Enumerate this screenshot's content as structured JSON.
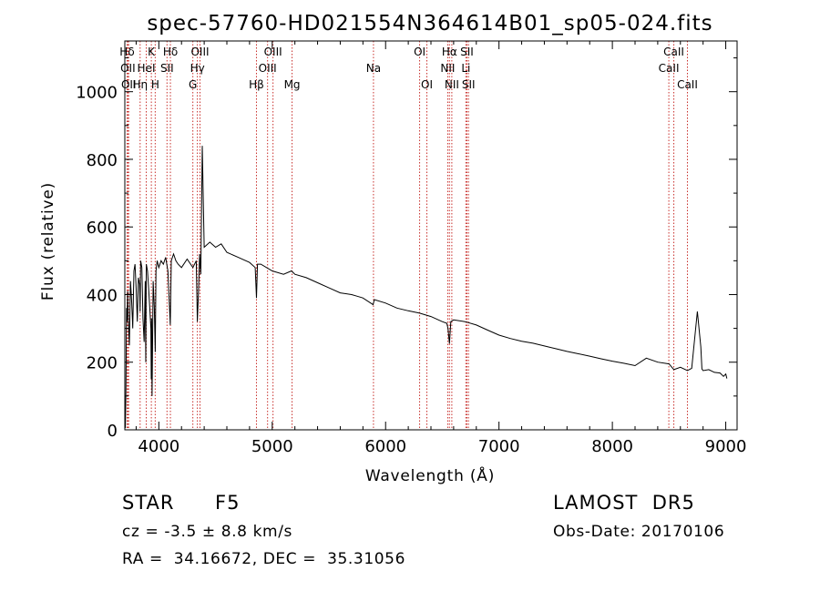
{
  "chart_data": {
    "type": "line",
    "title": "spec-57760-HD021554N364614B01_sp05-024.fits",
    "xlabel": "Wavelength (Å)",
    "ylabel": "Flux (relative)",
    "xlim": [
      3700,
      9100
    ],
    "ylim": [
      0,
      1150
    ],
    "xticks": [
      4000,
      5000,
      6000,
      7000,
      8000,
      9000
    ],
    "yticks": [
      0,
      200,
      400,
      600,
      800,
      1000
    ],
    "grid": false,
    "legend": "none",
    "line_color": "#000000",
    "marker_color": "#c8302c",
    "series": [
      {
        "x": [
          3705,
          3710,
          3715,
          3720,
          3725,
          3730,
          3740,
          3750,
          3760,
          3770,
          3780,
          3790,
          3800,
          3810,
          3820,
          3830,
          3835,
          3840,
          3850,
          3860,
          3870,
          3880,
          3885,
          3890,
          3900,
          3910,
          3920,
          3930,
          3933,
          3936,
          3940,
          3950,
          3960,
          3968,
          3975,
          3985,
          4000,
          4020,
          4040,
          4060,
          4080,
          4101,
          4110,
          4130,
          4150,
          4170,
          4200,
          4250,
          4300,
          4330,
          4340,
          4350,
          4360,
          4370,
          4383,
          4400,
          4450,
          4500,
          4550,
          4600,
          4700,
          4800,
          4850,
          4861,
          4870,
          4900,
          5000,
          5100,
          5170,
          5200,
          5300,
          5400,
          5500,
          5600,
          5700,
          5750,
          5800,
          5890,
          5900,
          6000,
          6100,
          6200,
          6300,
          6400,
          6500,
          6540,
          6550,
          6563,
          6575,
          6600,
          6700,
          6800,
          6900,
          7000,
          7100,
          7200,
          7300,
          7400,
          7500,
          7600,
          7700,
          7800,
          7900,
          8000,
          8100,
          8200,
          8300,
          8400,
          8500,
          8542,
          8600,
          8662,
          8700,
          8750,
          8780,
          8790,
          8800,
          8850,
          8900,
          8950,
          8980,
          9000,
          9010
        ],
        "values": [
          5,
          120,
          360,
          320,
          410,
          340,
          250,
          440,
          380,
          300,
          470,
          490,
          420,
          320,
          450,
          430,
          350,
          500,
          480,
          330,
          260,
          440,
          200,
          490,
          470,
          420,
          360,
          300,
          150,
          330,
          100,
          440,
          360,
          230,
          470,
          500,
          480,
          500,
          490,
          510,
          470,
          310,
          500,
          520,
          500,
          490,
          480,
          505,
          480,
          500,
          320,
          410,
          520,
          460,
          840,
          540,
          555,
          540,
          550,
          525,
          510,
          495,
          480,
          390,
          490,
          490,
          470,
          460,
          470,
          460,
          450,
          435,
          420,
          405,
          400,
          395,
          390,
          370,
          385,
          375,
          360,
          352,
          345,
          335,
          320,
          315,
          300,
          255,
          320,
          325,
          320,
          310,
          295,
          280,
          270,
          262,
          256,
          248,
          240,
          232,
          225,
          218,
          210,
          203,
          197,
          190,
          212,
          200,
          195,
          178,
          185,
          175,
          182,
          350,
          245,
          180,
          175,
          178,
          170,
          168,
          158,
          165,
          152
        ]
      }
    ],
    "spectral_lines": [
      {
        "label": "Hδ",
        "x": 3720,
        "row": 0
      },
      {
        "label": "OII",
        "x": 3727,
        "row": 1
      },
      {
        "label": "OII",
        "x": 3734,
        "row": 2
      },
      {
        "label": "Hη",
        "x": 3835,
        "row": 2
      },
      {
        "label": "HeI",
        "x": 3889,
        "row": 1
      },
      {
        "label": "K",
        "x": 3934,
        "row": 0
      },
      {
        "label": "H",
        "x": 3968,
        "row": 2
      },
      {
        "label": "SII",
        "x": 4072,
        "row": 1
      },
      {
        "label": "Hδ",
        "x": 4102,
        "row": 0
      },
      {
        "label": "G",
        "x": 4300,
        "row": 2
      },
      {
        "label": "Hγ",
        "x": 4340,
        "row": 1
      },
      {
        "label": "OIII",
        "x": 4363,
        "row": 0
      },
      {
        "label": "Hβ",
        "x": 4861,
        "row": 2
      },
      {
        "label": "OIII",
        "x": 4959,
        "row": 1
      },
      {
        "label": "OIII",
        "x": 5007,
        "row": 0
      },
      {
        "label": "Mg",
        "x": 5175,
        "row": 2
      },
      {
        "label": "Na",
        "x": 5893,
        "row": 1
      },
      {
        "label": "OI",
        "x": 6300,
        "row": 0
      },
      {
        "label": "OI",
        "x": 6364,
        "row": 2
      },
      {
        "label": "NII",
        "x": 6548,
        "row": 1
      },
      {
        "label": "Hα",
        "x": 6563,
        "row": 0
      },
      {
        "label": "NII",
        "x": 6584,
        "row": 2
      },
      {
        "label": "Li",
        "x": 6708,
        "row": 1
      },
      {
        "label": "SII",
        "x": 6717,
        "row": 0
      },
      {
        "label": "SII",
        "x": 6731,
        "row": 2
      },
      {
        "label": "CaII",
        "x": 8498,
        "row": 1
      },
      {
        "label": "CaII",
        "x": 8542,
        "row": 0
      },
      {
        "label": "CaII",
        "x": 8662,
        "row": 2
      }
    ]
  },
  "info": {
    "object_class": "STAR",
    "subclass": "F5",
    "survey": "LAMOST  DR5",
    "redshift": "cz = -3.5 ± 8.8 km/s",
    "obs_date": "Obs-Date: 20170106",
    "coords": "RA =  34.16672, DEC =  35.31056"
  }
}
